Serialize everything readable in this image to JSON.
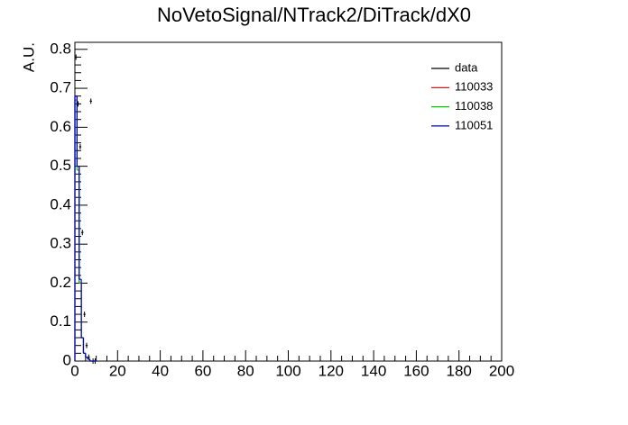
{
  "chart_data": {
    "type": "histogram",
    "title": "NoVetoSignal/NTrack2/DiTrack/dX0",
    "y_label": "A.U.",
    "bins": [
      0,
      1,
      2,
      3,
      4,
      5,
      6,
      7,
      8,
      9,
      10
    ],
    "series": [
      {
        "name": "data",
        "color": "#000000",
        "style": "points",
        "values": [
          0.78,
          0.66,
          0.55,
          0.33,
          0.12,
          0.04,
          0.01,
          0.667,
          0,
          0
        ]
      },
      {
        "name": "110033",
        "color": "#cc0000",
        "style": "step",
        "values": [
          0.68,
          0.5,
          0.2,
          0.06,
          0.02,
          0.01,
          0.005,
          0,
          0,
          0
        ]
      },
      {
        "name": "110038",
        "color": "#00cc00",
        "style": "step",
        "values": [
          0.67,
          0.49,
          0.2,
          0.06,
          0.02,
          0.01,
          0.005,
          0,
          0,
          0
        ]
      },
      {
        "name": "110051",
        "color": "#0000cc",
        "style": "step",
        "values": [
          0.68,
          0.5,
          0.21,
          0.06,
          0.02,
          0.01,
          0.005,
          0,
          0,
          0
        ]
      }
    ],
    "xlim": [
      0,
      200
    ],
    "xticks": [
      0,
      20,
      40,
      60,
      80,
      100,
      120,
      140,
      160,
      180,
      200
    ],
    "ylim": [
      0,
      0.818
    ],
    "yticks": [
      0,
      0.1,
      0.2,
      0.3,
      0.4,
      0.5,
      0.6,
      0.7,
      0.8
    ],
    "legend": "top-right",
    "grid": false
  }
}
